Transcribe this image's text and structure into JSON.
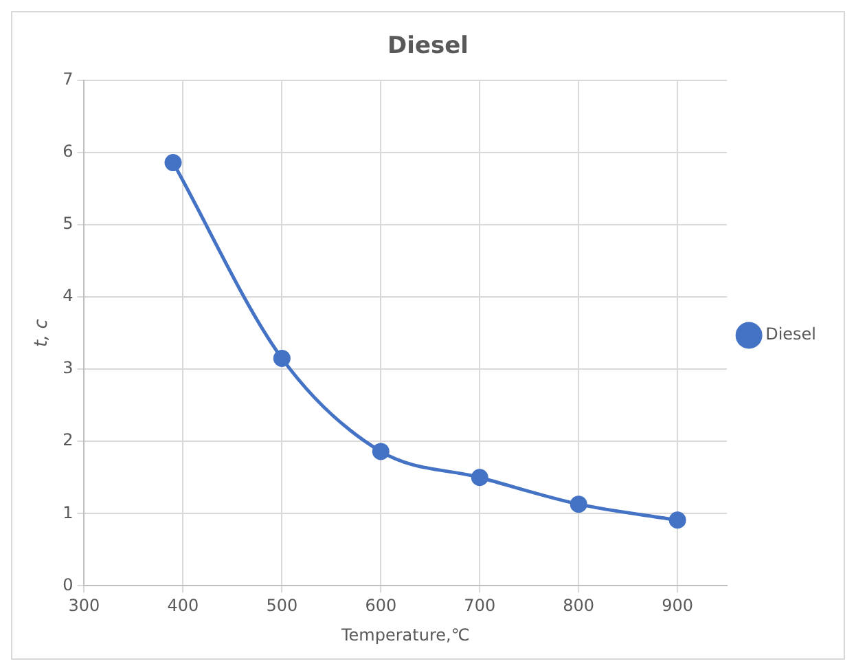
{
  "chart_data": {
    "type": "line",
    "title": "Diesel",
    "xlabel": "Temperature,℃",
    "ylabel": "t, c",
    "x": [
      390,
      500,
      600,
      700,
      800,
      900
    ],
    "series": [
      {
        "name": "Diesel",
        "color": "#4472c4",
        "values": [
          5.86,
          3.15,
          1.86,
          1.5,
          1.13,
          0.91
        ]
      }
    ],
    "xlim": [
      300,
      950
    ],
    "xticks": [
      300,
      400,
      500,
      600,
      700,
      800,
      900
    ],
    "ylim": [
      0,
      7
    ],
    "yticks": [
      0,
      1,
      2,
      3,
      4,
      5,
      6,
      7
    ],
    "grid": true,
    "legend": "right",
    "marker": "circle",
    "line_style": "solid"
  }
}
